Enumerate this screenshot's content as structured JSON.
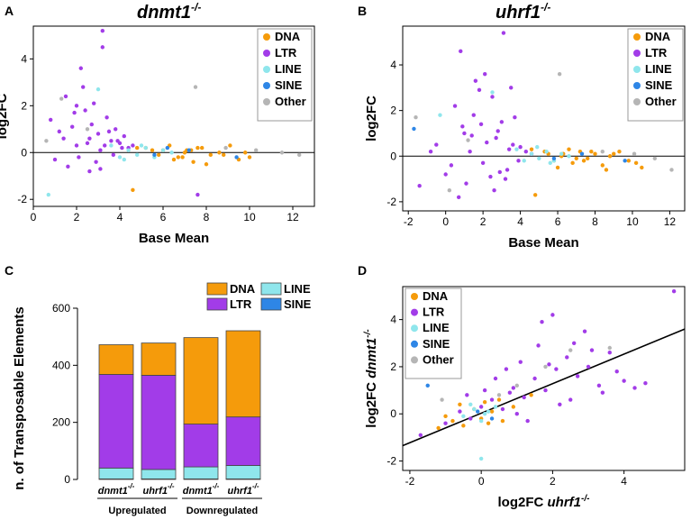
{
  "colors": {
    "DNA": "#f59b0b",
    "LTR": "#a23ce8",
    "LINE": "#8fe6ec",
    "SINE": "#2e86e6",
    "Other": "#b5b5b5"
  },
  "panels": {
    "A": {
      "letter": "A",
      "title": "dnmt1",
      "title_sup": "-/-"
    },
    "B": {
      "letter": "B",
      "title": "uhrf1",
      "title_sup": "-/-"
    },
    "C": {
      "letter": "C"
    },
    "D": {
      "letter": "D"
    }
  },
  "chart_data": [
    {
      "id": "A",
      "type": "scatter",
      "title": "dnmt1-/-",
      "xlabel": "Base Mean",
      "ylabel": "log2FC",
      "xlim": [
        0,
        13
      ],
      "ylim": [
        -2.3,
        5.4
      ],
      "xticks": [
        "0",
        "2",
        "4",
        "6",
        "8",
        "10",
        "12"
      ],
      "yticks": [
        "-2",
        "0",
        "2",
        "4"
      ],
      "reference_line": {
        "y": 0
      },
      "legend": {
        "position": "top-right",
        "entries": [
          "DNA",
          "LTR",
          "LINE",
          "SINE",
          "Other"
        ]
      },
      "series": [
        {
          "name": "DNA",
          "x": [
            4.6,
            5.2,
            5.8,
            6.3,
            6.7,
            7.1,
            7.4,
            7.8,
            8.2,
            8.6,
            9.1,
            9.5,
            10.0,
            6.0,
            6.5,
            7.0,
            7.6,
            8.0,
            5.5,
            8.8,
            4.8,
            7.3,
            6.9,
            9.8
          ],
          "y": [
            -1.6,
            0.2,
            -0.1,
            0.3,
            -0.2,
            0.1,
            -0.4,
            0.2,
            -0.1,
            0.0,
            0.3,
            -0.3,
            -0.2,
            0.1,
            -0.3,
            0.0,
            0.2,
            -0.5,
            0.1,
            -0.1,
            0.2,
            0.1,
            -0.2,
            0.0
          ]
        },
        {
          "name": "LTR",
          "x": [
            0.8,
            1.2,
            1.5,
            1.8,
            2.0,
            2.2,
            2.4,
            2.6,
            2.8,
            3.0,
            3.2,
            3.4,
            3.6,
            3.8,
            4.0,
            4.2,
            4.4,
            4.6,
            1.0,
            1.6,
            2.1,
            2.5,
            2.9,
            3.3,
            3.7,
            4.1,
            2.3,
            2.7,
            3.1,
            3.5,
            1.9,
            2.6,
            3.2,
            7.6,
            1.4,
            3.9,
            2.0,
            3.1
          ],
          "y": [
            1.4,
            0.9,
            2.4,
            1.1,
            0.3,
            3.6,
            1.8,
            0.6,
            2.1,
            0.8,
            5.2,
            1.5,
            0.5,
            1.0,
            0.4,
            0.7,
            0.2,
            0.3,
            -0.3,
            -0.6,
            -0.2,
            0.4,
            -0.4,
            0.3,
            -0.1,
            0.2,
            2.8,
            1.2,
            0.1,
            0.9,
            1.7,
            -0.8,
            4.5,
            -1.8,
            0.6,
            0.5,
            2.0,
            -0.7
          ]
        },
        {
          "name": "LINE",
          "x": [
            0.7,
            3.0,
            3.6,
            4.0,
            4.4,
            4.8,
            5.2,
            5.6,
            6.0,
            6.4,
            5.0,
            4.2
          ],
          "y": [
            -1.8,
            2.7,
            0.3,
            -0.2,
            0.1,
            -0.1,
            0.2,
            -0.2,
            0.1,
            0.0,
            0.3,
            -0.3
          ]
        },
        {
          "name": "SINE",
          "x": [
            5.6,
            7.2,
            9.4,
            6.2
          ],
          "y": [
            -0.1,
            0.1,
            -0.2,
            0.2
          ]
        },
        {
          "name": "Other",
          "x": [
            1.3,
            2.5,
            7.5,
            8.9,
            10.3,
            11.5,
            12.3,
            0.6
          ],
          "y": [
            2.3,
            1.0,
            2.8,
            0.2,
            0.1,
            0.0,
            -0.1,
            0.5
          ]
        }
      ]
    },
    {
      "id": "B",
      "type": "scatter",
      "title": "uhrf1-/-",
      "xlabel": "Base Mean",
      "ylabel": "log2FC",
      "xlim": [
        -2.3,
        12.8
      ],
      "ylim": [
        -2.4,
        5.7
      ],
      "xticks": [
        "-2",
        "0",
        "2",
        "4",
        "6",
        "8",
        "10",
        "12"
      ],
      "yticks": [
        "-2",
        "0",
        "2",
        "4"
      ],
      "reference_line": {
        "y": 0
      },
      "legend": {
        "position": "top-right",
        "entries": [
          "DNA",
          "LTR",
          "LINE",
          "SINE",
          "Other"
        ]
      },
      "series": [
        {
          "name": "DNA",
          "x": [
            4.8,
            5.3,
            5.8,
            6.3,
            6.8,
            7.2,
            7.6,
            8.0,
            8.4,
            8.8,
            9.3,
            9.8,
            10.2,
            6.0,
            6.6,
            7.0,
            7.8,
            5.5,
            8.6,
            9.0,
            4.6,
            7.4,
            10.5,
            6.2
          ],
          "y": [
            -1.7,
            0.2,
            -0.2,
            0.1,
            -0.3,
            0.2,
            -0.1,
            0.1,
            -0.4,
            0.0,
            0.2,
            -0.2,
            -0.3,
            -0.5,
            0.3,
            -0.1,
            0.2,
            0.1,
            -0.6,
            0.1,
            0.3,
            -0.2,
            -0.5,
            0.0
          ]
        },
        {
          "name": "LTR",
          "x": [
            -1.4,
            -0.5,
            0.0,
            0.5,
            0.8,
            1.0,
            1.3,
            1.6,
            1.9,
            2.2,
            2.5,
            2.8,
            3.1,
            3.4,
            3.7,
            4.0,
            4.3,
            4.6,
            0.3,
            1.1,
            1.5,
            2.0,
            2.4,
            2.7,
            3.0,
            3.3,
            3.6,
            3.9,
            0.7,
            1.8,
            2.6,
            3.5,
            -0.8,
            1.4,
            2.1,
            3.2,
            0.9,
            2.9
          ],
          "y": [
            -1.3,
            0.5,
            -0.8,
            2.2,
            4.6,
            1.0,
            0.2,
            3.3,
            1.4,
            0.6,
            2.6,
            1.1,
            5.4,
            0.3,
            1.7,
            0.4,
            0.2,
            0.1,
            -0.4,
            -1.2,
            1.8,
            -0.3,
            -0.9,
            0.8,
            1.5,
            -0.6,
            0.5,
            -0.2,
            -1.8,
            2.9,
            -1.5,
            3.0,
            0.2,
            0.9,
            3.6,
            -1.0,
            1.3,
            -0.7
          ]
        },
        {
          "name": "LINE",
          "x": [
            -0.3,
            2.5,
            3.8,
            4.2,
            4.6,
            5.0,
            5.4,
            5.8,
            6.2,
            6.6,
            4.9,
            5.6
          ],
          "y": [
            1.8,
            2.8,
            0.3,
            -0.2,
            0.1,
            -0.1,
            0.2,
            -0.2,
            0.1,
            0.0,
            0.4,
            -0.3
          ]
        },
        {
          "name": "SINE",
          "x": [
            -1.7,
            5.8,
            7.3,
            9.6
          ],
          "y": [
            1.2,
            -0.1,
            0.1,
            -0.2
          ]
        },
        {
          "name": "Other",
          "x": [
            -1.6,
            0.2,
            6.1,
            8.4,
            10.1,
            11.2,
            12.1,
            1.2
          ],
          "y": [
            1.7,
            -1.5,
            3.6,
            0.2,
            0.1,
            -0.1,
            -0.6,
            0.7
          ]
        }
      ]
    },
    {
      "id": "C",
      "type": "bar",
      "stacked": true,
      "ylabel": "n. of Transposable Elements",
      "ylim": [
        0,
        600
      ],
      "yticks": [
        "0",
        "200",
        "400",
        "600"
      ],
      "categories": [
        "dnmt1-/-",
        "uhrf1-/-",
        "dnmt1-/-",
        "uhrf1-/-"
      ],
      "groups": [
        {
          "label": "Upregulated",
          "categories": [
            0,
            1
          ]
        },
        {
          "label": "Downregulated",
          "categories": [
            2,
            3
          ]
        }
      ],
      "legend": {
        "position": "top-right",
        "entries": [
          "DNA",
          "LINE",
          "LTR",
          "SINE"
        ]
      },
      "series": [
        {
          "name": "SINE",
          "values": [
            2,
            2,
            2,
            2
          ]
        },
        {
          "name": "LINE",
          "values": [
            38,
            33,
            42,
            47
          ]
        },
        {
          "name": "LTR",
          "values": [
            328,
            330,
            150,
            170
          ]
        },
        {
          "name": "DNA",
          "values": [
            104,
            113,
            303,
            302
          ]
        }
      ]
    },
    {
      "id": "D",
      "type": "scatter",
      "xlabel": "log2FC uhrf1-/-",
      "ylabel": "log2FC dnmt1-/-",
      "xlim": [
        -2.2,
        5.7
      ],
      "ylim": [
        -2.4,
        5.4
      ],
      "xticks": [
        "-2",
        "0",
        "2",
        "4"
      ],
      "yticks": [
        "-2",
        "0",
        "2",
        "4"
      ],
      "trend_line": {
        "x": [
          -2.2,
          5.7
        ],
        "y": [
          -1.35,
          3.6
        ]
      },
      "legend": {
        "position": "top-left",
        "entries": [
          "DNA",
          "LTR",
          "LINE",
          "SINE",
          "Other"
        ]
      },
      "series": [
        {
          "name": "DNA",
          "x": [
            -1.2,
            -0.8,
            -0.5,
            -0.2,
            0.0,
            0.3,
            0.6,
            0.9,
            -0.6,
            0.1,
            0.5,
            -1.0,
            1.4,
            0.2
          ],
          "y": [
            -0.6,
            -0.3,
            -0.5,
            0.2,
            -0.2,
            0.1,
            -0.3,
            0.3,
            0.4,
            0.5,
            0.6,
            -0.1,
            0.8,
            -0.4
          ]
        },
        {
          "name": "LTR",
          "x": [
            -1.7,
            -1.0,
            -0.6,
            -0.3,
            0.0,
            0.3,
            0.6,
            0.9,
            1.2,
            1.5,
            1.8,
            2.1,
            2.4,
            2.7,
            3.0,
            3.3,
            3.6,
            4.0,
            4.6,
            5.4,
            0.4,
            0.8,
            1.1,
            1.6,
            2.0,
            2.6,
            3.1,
            3.8,
            4.3,
            1.3,
            2.2,
            0.1,
            -0.4,
            1.0,
            2.9,
            1.7,
            2.5,
            0.7,
            3.4,
            1.9
          ],
          "y": [
            -0.9,
            -0.4,
            0.1,
            -0.2,
            0.3,
            0.6,
            0.2,
            1.1,
            0.7,
            1.5,
            1.0,
            1.9,
            2.4,
            1.6,
            2.0,
            1.2,
            2.6,
            1.4,
            1.3,
            5.2,
            1.5,
            0.9,
            2.2,
            2.9,
            4.2,
            3.0,
            2.7,
            1.8,
            1.1,
            -0.3,
            0.4,
            1.0,
            0.8,
            0.0,
            3.5,
            3.9,
            0.6,
            1.9,
            0.9,
            2.1
          ]
        },
        {
          "name": "LINE",
          "x": [
            -0.5,
            -0.2,
            0.0,
            0.2,
            0.4,
            0.1,
            -0.3,
            0.0
          ],
          "y": [
            -0.1,
            0.2,
            -0.3,
            0.1,
            0.3,
            0.0,
            0.4,
            -1.9
          ]
        },
        {
          "name": "SINE",
          "x": [
            -0.1,
            0.3,
            -1.5
          ],
          "y": [
            0.1,
            -0.2,
            1.2
          ]
        },
        {
          "name": "Other",
          "x": [
            -1.1,
            0.5,
            1.0,
            2.5,
            3.6,
            1.8
          ],
          "y": [
            0.6,
            0.8,
            1.2,
            2.7,
            2.8,
            2.0
          ]
        }
      ]
    }
  ]
}
